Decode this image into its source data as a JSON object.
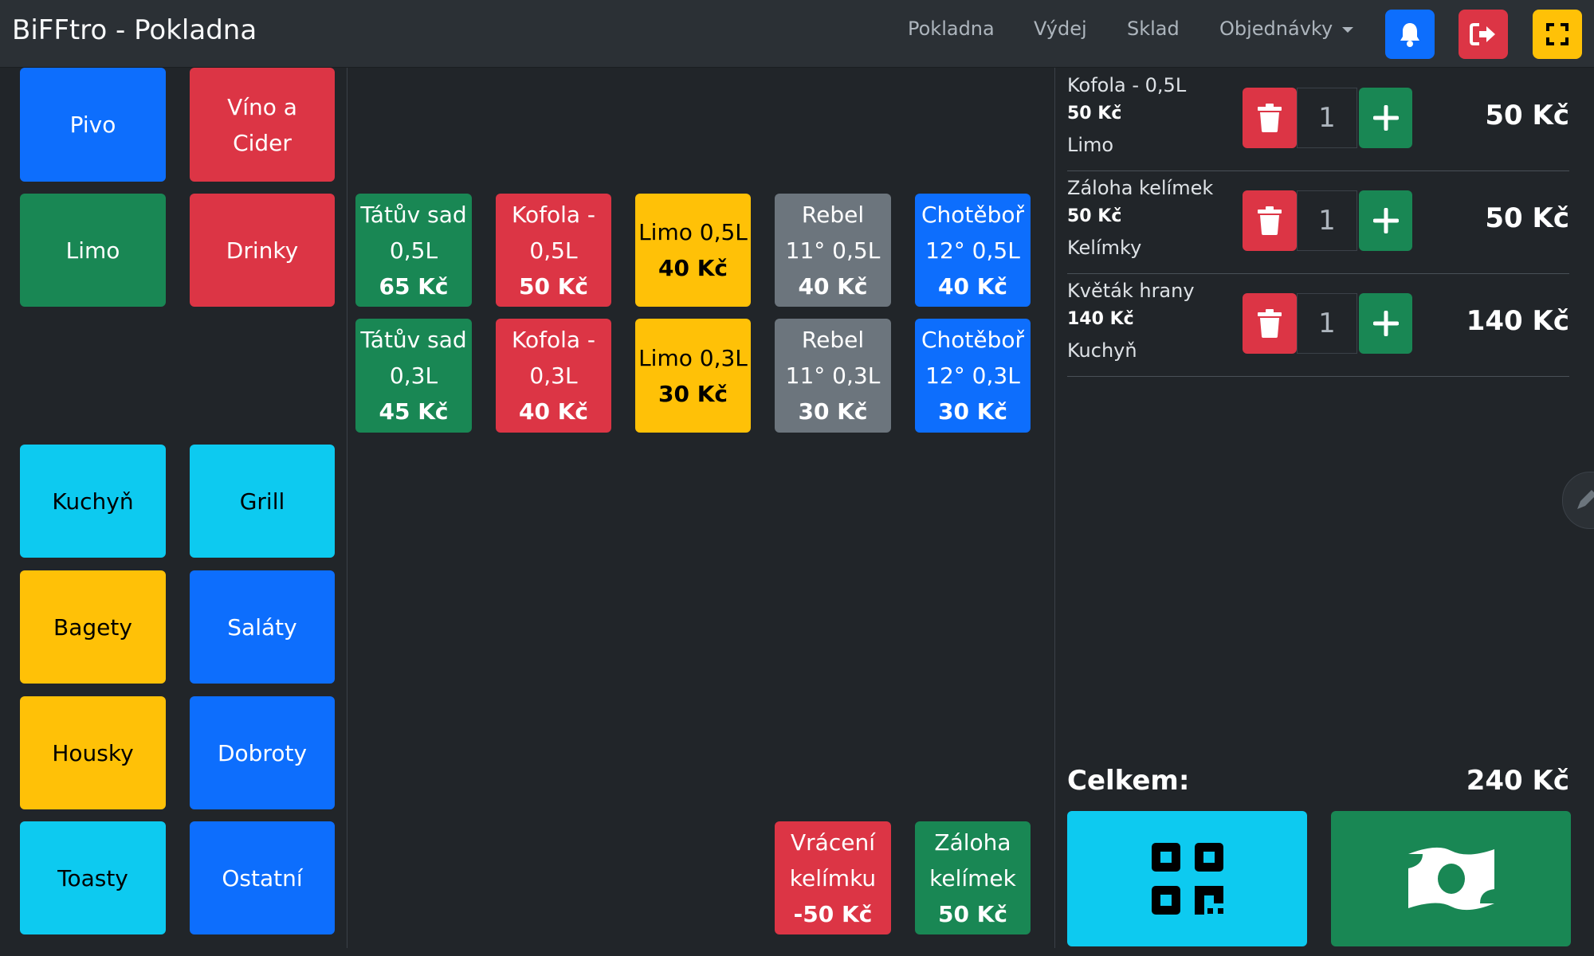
{
  "app": {
    "title": "BiFFtro - Pokladna"
  },
  "nav": {
    "pokladna": "Pokladna",
    "vydej": "Výdej",
    "sklad": "Sklad",
    "objednavky": "Objednávky"
  },
  "categories": [
    {
      "label": "Pivo",
      "color": "#0d6efd"
    },
    {
      "label": "Víno a Cider",
      "color": "#dc3545"
    },
    {
      "label": "Limo",
      "color": "#198754"
    },
    {
      "label": "Drinky",
      "color": "#dc3545"
    },
    {
      "label": "Kuchyň",
      "color": "#0dcaf0"
    },
    {
      "label": "Grill",
      "color": "#0dcaf0"
    },
    {
      "label": "Bagety",
      "color": "#ffc107"
    },
    {
      "label": "Saláty",
      "color": "#0d6efd"
    },
    {
      "label": "Housky",
      "color": "#ffc107"
    },
    {
      "label": "Dobroty",
      "color": "#0d6efd"
    },
    {
      "label": "Toasty",
      "color": "#0dcaf0"
    },
    {
      "label": "Ostatní",
      "color": "#0d6efd"
    }
  ],
  "products": [
    {
      "name": "Tátův sad 0,5L",
      "price": "65 Kč"
    },
    {
      "name": "Kofola - 0,5L",
      "price": "50 Kč"
    },
    {
      "name": "Limo 0,5L",
      "price": "40 Kč"
    },
    {
      "name": "Rebel 11° 0,5L",
      "price": "40 Kč"
    },
    {
      "name": "Chotěboř 12° 0,5L",
      "price": "40 Kč"
    },
    {
      "name": "Tátův sad 0,3L",
      "price": "45 Kč"
    },
    {
      "name": "Kofola - 0,3L",
      "price": "40 Kč"
    },
    {
      "name": "Limo 0,3L",
      "price": "30 Kč"
    },
    {
      "name": "Rebel 11° 0,3L",
      "price": "30 Kč"
    },
    {
      "name": "Chotěboř 12° 0,3L",
      "price": "30 Kč"
    }
  ],
  "deposit": [
    {
      "name": "Vrácení kelímku",
      "price": "-50 Kč"
    },
    {
      "name": "Záloha kelímek",
      "price": "50 Kč"
    }
  ],
  "cart": {
    "items": [
      {
        "name": "Kofola - 0,5L",
        "unit_price": "50 Kč",
        "category": "Limo",
        "qty": "1",
        "total": "50 Kč"
      },
      {
        "name": "Záloha kelímek",
        "unit_price": "50 Kč",
        "category": "Kelímky",
        "qty": "1",
        "total": "50 Kč"
      },
      {
        "name": "Květák hrany",
        "unit_price": "140 Kč",
        "category": "Kuchyň",
        "qty": "1",
        "total": "140 Kč"
      }
    ],
    "total_label": "Celkem:",
    "total": "240 Kč"
  },
  "colors": {
    "primary": "#0d6efd",
    "danger": "#dc3545",
    "success": "#198754",
    "info": "#0dcaf0",
    "warning": "#ffc107",
    "secondary": "#6c757d",
    "background": "#212529"
  },
  "icons": {
    "notifications": "bell-icon",
    "logout": "logout-icon",
    "fullscreen": "fullscreen-icon",
    "remove_item": "trash-icon",
    "increase": "plus-icon",
    "pay_qr": "qr-code-icon",
    "pay_cash": "cash-icon",
    "edit": "pencil-icon"
  }
}
